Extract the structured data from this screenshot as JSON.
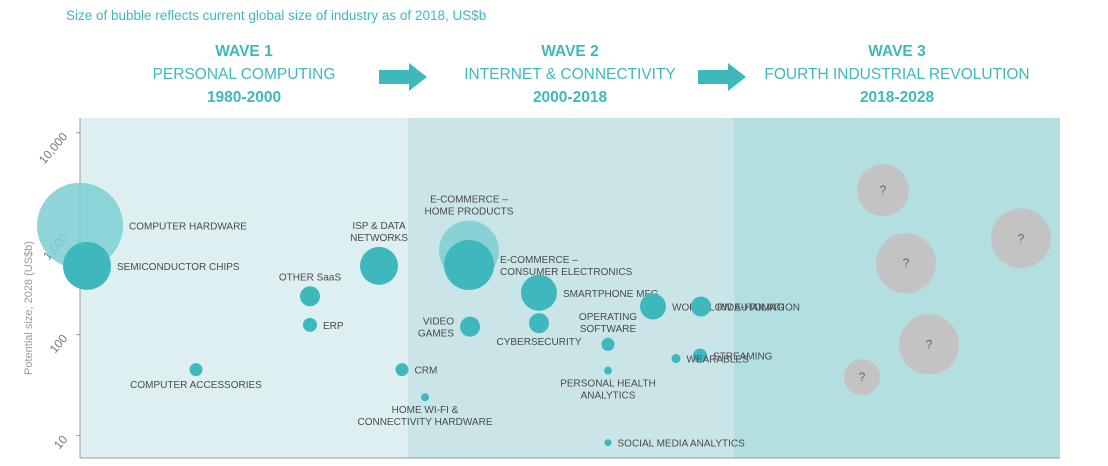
{
  "note": "Size of bubble reflects current global size of industry as of 2018, US$b",
  "waves": [
    {
      "title": "WAVE 1",
      "subtitle": "PERSONAL COMPUTING",
      "years": "1980-2000"
    },
    {
      "title": "WAVE 2",
      "subtitle": "INTERNET & CONNECTIVITY",
      "years": "2000-2018"
    },
    {
      "title": "WAVE 3",
      "subtitle": "FOURTH INDUSTRIAL REVOLUTION",
      "years": "2018-2028"
    }
  ],
  "colors": {
    "bubble": "#3fb8bd",
    "bubble_light": "#7ccfd2",
    "unknown": "#c3c3c3",
    "band1": "#deeff1",
    "band2": "#c9e5e8",
    "band3": "#b3dfe1",
    "text": "#3fb8bd",
    "label": "#4a4a4a",
    "axis": "#9a9a9a"
  },
  "chart_data": {
    "type": "scatter",
    "ylabel": "Potential size, 2028 (US$b)",
    "yscale": "log",
    "ylim": [
      6,
      14000
    ],
    "yticks": [
      "10,000",
      "1,000",
      "100",
      "10"
    ],
    "ytick_values": [
      10000,
      1000,
      100,
      10
    ],
    "points": [
      {
        "label": "COMPUTER HARDWARE",
        "lines": [
          "COMPUTER HARDWARE"
        ],
        "wave": 1,
        "y": 1200,
        "size": 43,
        "light": true,
        "lp": "right"
      },
      {
        "label": "SEMICONDUCTOR CHIPS",
        "lines": [
          "SEMICONDUCTOR CHIPS"
        ],
        "wave": 1,
        "y": 480,
        "size": 24,
        "lp": "right"
      },
      {
        "label": "OTHER SaaS",
        "lines": [
          "OTHER SaaS"
        ],
        "wave": 1,
        "y": 240,
        "size": 10,
        "lp": "above"
      },
      {
        "label": "ERP",
        "lines": [
          "ERP"
        ],
        "wave": 1,
        "y": 125,
        "size": 7,
        "lp": "right"
      },
      {
        "label": "COMPUTER ACCESSORIES",
        "lines": [
          "COMPUTER ACCESSORIES"
        ],
        "wave": 1,
        "y": 45,
        "size": 6.5,
        "lp": "below"
      },
      {
        "label": "ISP & DATA NETWORKS",
        "lines": [
          "ISP & DATA",
          "NETWORKS"
        ],
        "wave": 1,
        "y": 480,
        "size": 19,
        "lp": "above"
      },
      {
        "label": "CRM",
        "lines": [
          "CRM"
        ],
        "wave": 2,
        "y": 45,
        "size": 6.5,
        "lp": "right"
      },
      {
        "label": "HOME WI-FI & CONNECTIVITY HARDWARE",
        "lines": [
          "HOME WI-FI &",
          "CONNECTIVITY HARDWARE"
        ],
        "wave": 2,
        "y": 24,
        "size": 4,
        "lp": "below"
      },
      {
        "label": "E-COMMERCE – HOME PRODUCTS",
        "lines": [
          "E-COMMERCE –",
          "HOME PRODUCTS"
        ],
        "wave": 2,
        "y": 680,
        "size": 30,
        "light": true,
        "lp": "above"
      },
      {
        "label": "E-COMMERCE – CONSUMER ELECTRONICS",
        "lines": [
          "E-COMMERCE –",
          "CONSUMER ELECTRONICS"
        ],
        "wave": 2,
        "y": 490,
        "size": 25,
        "lp": "right"
      },
      {
        "label": "VIDEO GAMES",
        "lines": [
          "VIDEO",
          "GAMES"
        ],
        "wave": 2,
        "y": 120,
        "size": 10,
        "lp": "left"
      },
      {
        "label": "CYBERSECURITY",
        "lines": [
          "CYBERSECURITY"
        ],
        "wave": 2,
        "y": 130,
        "size": 10,
        "lp": "below"
      },
      {
        "label": "SMARTPHONE MFG.",
        "lines": [
          "SMARTPHONE MFG."
        ],
        "wave": 2,
        "y": 260,
        "size": 18,
        "lp": "right"
      },
      {
        "label": "OPERATING SOFTWARE",
        "lines": [
          "OPERATING",
          "SOFTWARE"
        ],
        "wave": 2,
        "y": 80,
        "size": 6.5,
        "lp": "above"
      },
      {
        "label": "PERSONAL HEALTH ANALYTICS",
        "lines": [
          "PERSONAL HEALTH",
          "ANALYTICS"
        ],
        "wave": 2,
        "y": 44,
        "size": 4,
        "lp": "below"
      },
      {
        "label": "SOCIAL MEDIA ANALYTICS",
        "lines": [
          "SOCIAL MEDIA ANALYTICS"
        ],
        "wave": 2,
        "y": 8.5,
        "size": 3.5,
        "lp": "right"
      },
      {
        "label": "WORKFLOW AUTOMATION",
        "lines": [
          "WORKFLOW AUTOMATION"
        ],
        "wave": 2,
        "y": 190,
        "size": 13,
        "lp": "right"
      },
      {
        "label": "RIDE-HAILING",
        "lines": [
          "RIDE-HAILING"
        ],
        "wave": 2,
        "y": 190,
        "size": 10,
        "lp": "right"
      },
      {
        "label": "STREAMING",
        "lines": [
          "STREAMING"
        ],
        "wave": 2,
        "y": 62,
        "size": 7,
        "lp": "right"
      },
      {
        "label": "WEARABLES",
        "lines": [
          "WEARABLES"
        ],
        "wave": 2,
        "y": 58,
        "size": 4.5,
        "lp": "right"
      },
      {
        "label": "?",
        "lines": [
          "?"
        ],
        "wave": 3,
        "y": 2700,
        "size": 26,
        "unknown": true
      },
      {
        "label": "?",
        "lines": [
          "?"
        ],
        "wave": 3,
        "y": 510,
        "size": 30,
        "unknown": true
      },
      {
        "label": "?",
        "lines": [
          "?"
        ],
        "wave": 3,
        "y": 80,
        "size": 30,
        "unknown": true
      },
      {
        "label": "?",
        "lines": [
          "?"
        ],
        "wave": 3,
        "y": 38,
        "size": 18,
        "unknown": true
      },
      {
        "label": "?",
        "lines": [
          "?"
        ],
        "wave": 3,
        "y": 900,
        "size": 30,
        "unknown": true
      }
    ]
  }
}
